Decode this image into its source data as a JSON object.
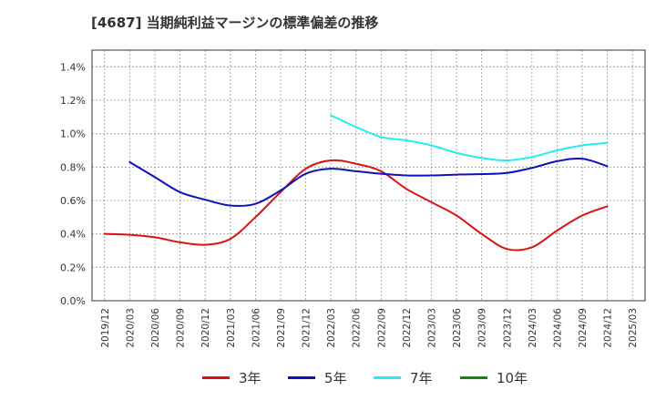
{
  "title": "[4687]  当期純利益マージンの標準偏差の推移",
  "chart_data": {
    "type": "line",
    "title": "[4687]  当期純利益マージンの標準偏差の推移",
    "xlabel": "",
    "ylabel": "",
    "x_ticks": [
      "2019/12",
      "2020/03",
      "2020/06",
      "2020/09",
      "2020/12",
      "2021/03",
      "2021/06",
      "2021/09",
      "2021/12",
      "2022/03",
      "2022/06",
      "2022/09",
      "2022/12",
      "2023/03",
      "2023/06",
      "2023/09",
      "2023/12",
      "2024/03",
      "2024/06",
      "2024/09",
      "2024/12",
      "2025/03"
    ],
    "y_ticks": [
      "0.0%",
      "0.2%",
      "0.4%",
      "0.6%",
      "0.8%",
      "1.0%",
      "1.2%",
      "1.4%"
    ],
    "ylim": [
      0,
      1.5
    ],
    "y_unit": "%",
    "grid": true,
    "legend_position": "bottom",
    "series": [
      {
        "name": "3年",
        "color": "#dd1111",
        "x": [
          "2019/12",
          "2020/03",
          "2020/06",
          "2020/09",
          "2020/12",
          "2021/03",
          "2021/06",
          "2021/09",
          "2021/12",
          "2022/03",
          "2022/06",
          "2022/09",
          "2022/12",
          "2023/03",
          "2023/06",
          "2023/09",
          "2023/12",
          "2024/03",
          "2024/06",
          "2024/09",
          "2024/12"
        ],
        "values": [
          0.4,
          0.395,
          0.38,
          0.35,
          0.335,
          0.37,
          0.5,
          0.65,
          0.79,
          0.84,
          0.82,
          0.775,
          0.67,
          0.59,
          0.51,
          0.4,
          0.31,
          0.32,
          0.42,
          0.51,
          0.565
        ]
      },
      {
        "name": "5年",
        "color": "#1111bb",
        "x": [
          "2020/03",
          "2020/06",
          "2020/09",
          "2020/12",
          "2021/03",
          "2021/06",
          "2021/09",
          "2021/12",
          "2022/03",
          "2022/06",
          "2022/09",
          "2022/12",
          "2023/03",
          "2023/06",
          "2023/09",
          "2023/12",
          "2024/03",
          "2024/06",
          "2024/09",
          "2024/12"
        ],
        "values": [
          0.83,
          0.74,
          0.65,
          0.605,
          0.57,
          0.58,
          0.66,
          0.76,
          0.79,
          0.775,
          0.76,
          0.75,
          0.75,
          0.755,
          0.758,
          0.765,
          0.795,
          0.835,
          0.85,
          0.805
        ]
      },
      {
        "name": "7年",
        "color": "#22eeee",
        "x": [
          "2022/03",
          "2022/06",
          "2022/09",
          "2022/12",
          "2023/03",
          "2023/06",
          "2023/09",
          "2023/12",
          "2024/03",
          "2024/06",
          "2024/09",
          "2024/12"
        ],
        "values": [
          1.11,
          1.04,
          0.98,
          0.96,
          0.93,
          0.885,
          0.855,
          0.84,
          0.86,
          0.9,
          0.93,
          0.945
        ]
      },
      {
        "name": "10年",
        "color": "#118811",
        "x": [],
        "values": []
      }
    ]
  }
}
